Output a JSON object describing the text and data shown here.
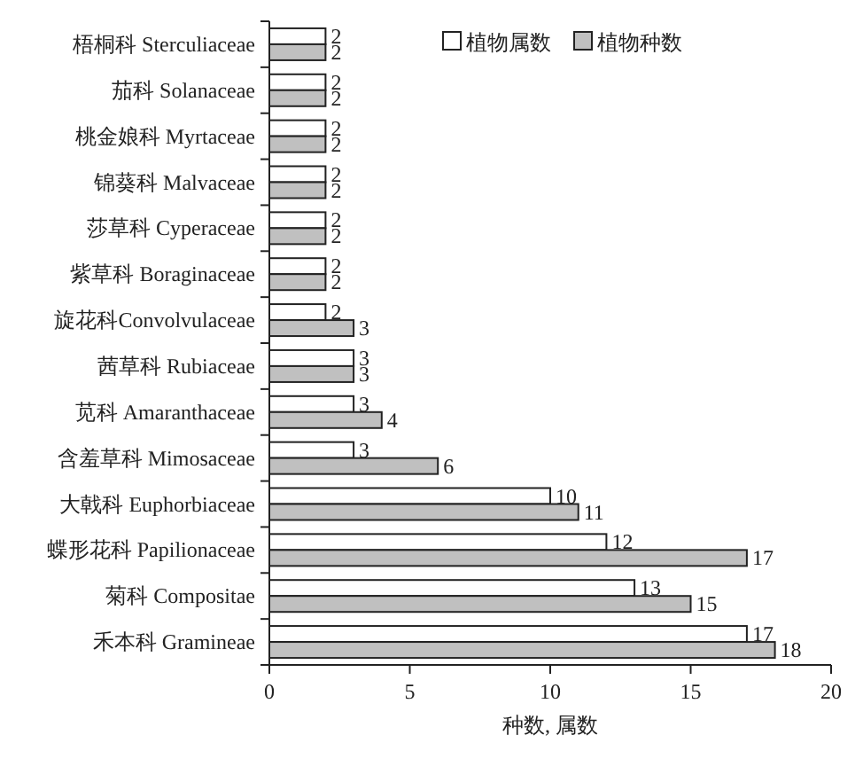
{
  "chart_data": {
    "type": "bar",
    "orientation": "horizontal",
    "xlabel": "种数, 属数",
    "categories": [
      "梧桐科 Sterculiaceae",
      "茄科 Solanaceae",
      "桃金娘科 Myrtaceae",
      "锦葵科 Malvaceae",
      "莎草科 Cyperaceae",
      "紫草科 Boraginaceae",
      "旋花科Convolvulaceae",
      "茜草科 Rubiaceae",
      "苋科 Amaranthaceae",
      "含羞草科 Mimosaceae",
      "大戟科 Euphorbiaceae",
      "蝶形花科 Papilionaceae",
      "菊科 Compositae",
      "禾本科 Gramineae"
    ],
    "series": [
      {
        "name": "植物属数",
        "color": "#ffffff",
        "values": [
          2,
          2,
          2,
          2,
          2,
          2,
          2,
          3,
          3,
          3,
          10,
          12,
          13,
          17
        ]
      },
      {
        "name": "植物种数",
        "color": "#c0c0c0",
        "values": [
          2,
          2,
          2,
          2,
          2,
          2,
          3,
          3,
          4,
          6,
          11,
          17,
          15,
          18
        ]
      }
    ],
    "xlim": [
      0,
      20
    ],
    "xticks": [
      0,
      5,
      10,
      15,
      20
    ],
    "data_labels": true,
    "legend": "top right",
    "grid": false
  }
}
